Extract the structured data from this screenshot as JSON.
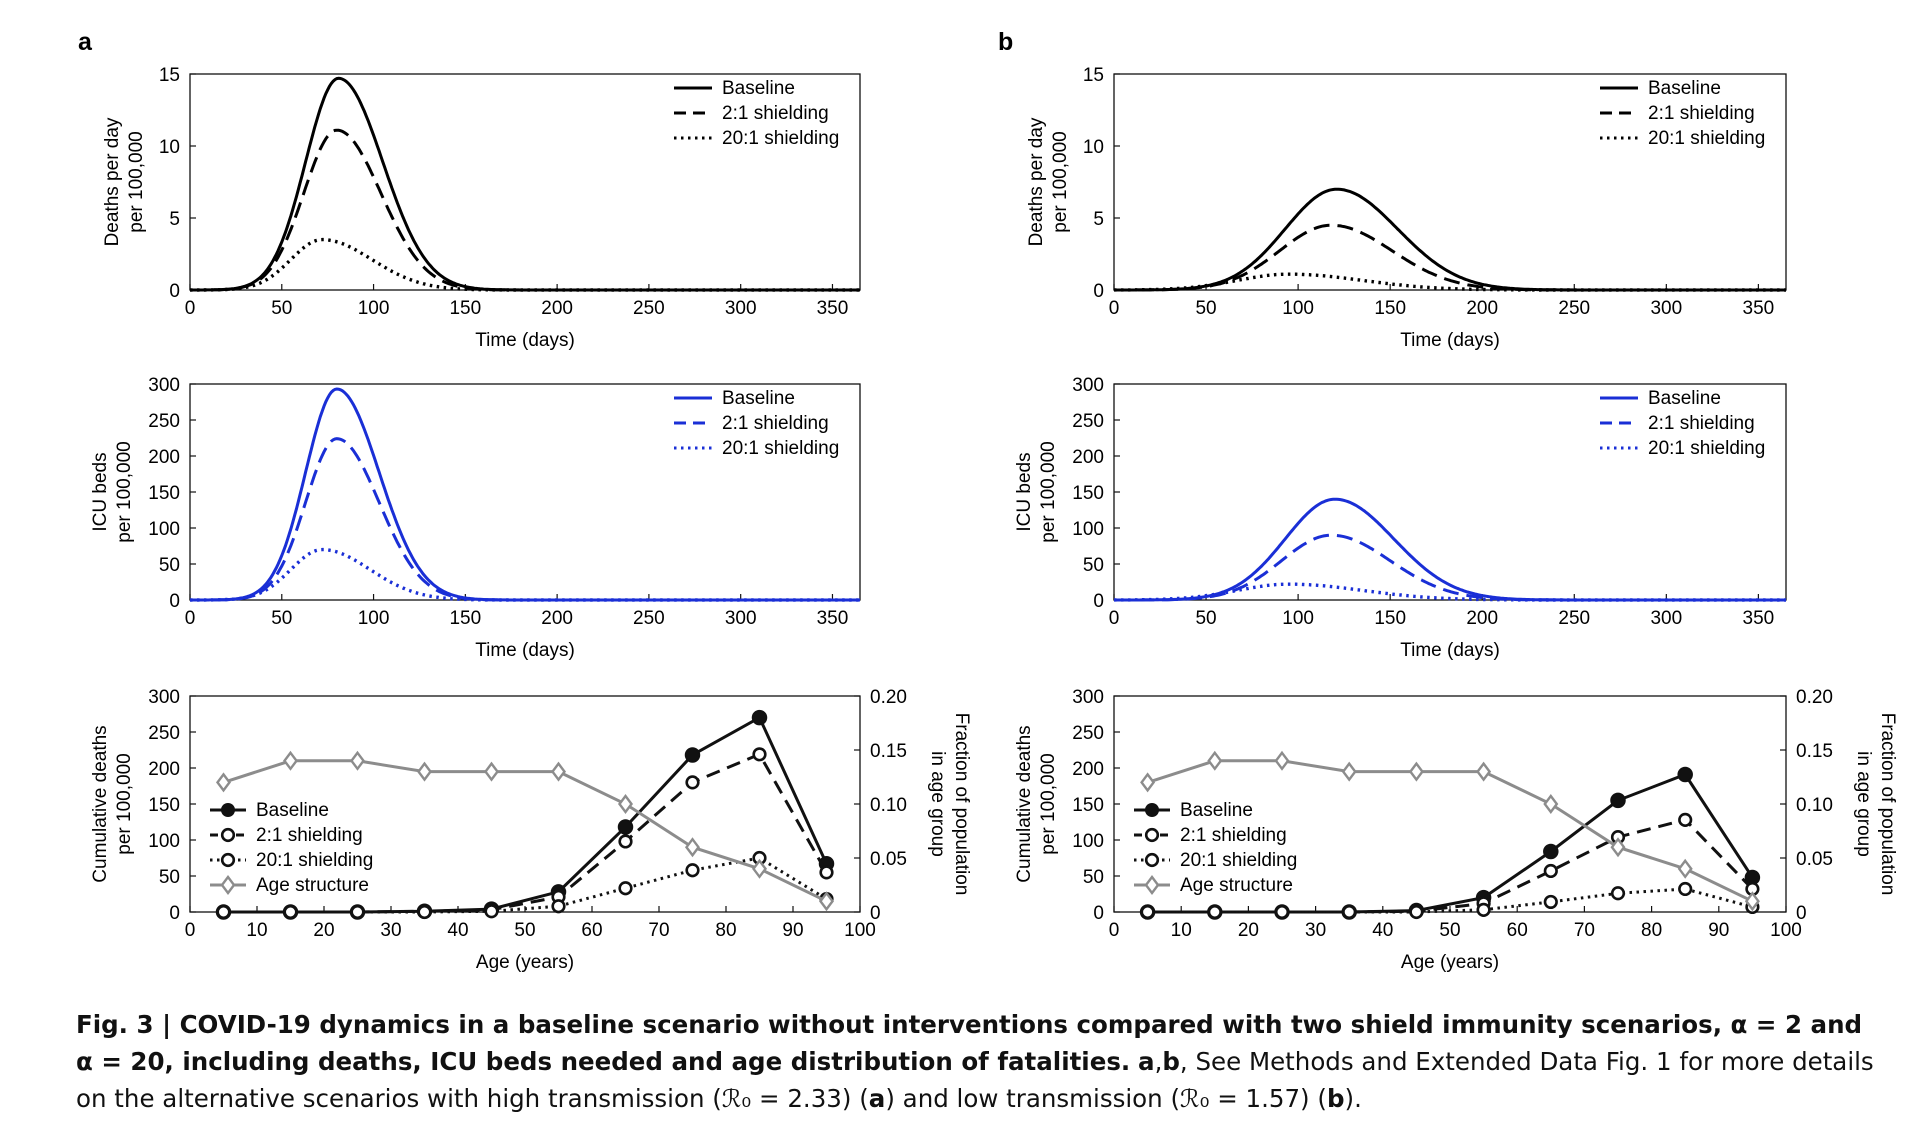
{
  "panel_labels": [
    "a",
    "b"
  ],
  "legend": {
    "line_entries": [
      "Baseline",
      "2:1 shielding",
      "20:1 shielding"
    ],
    "age_entries": [
      "Baseline",
      "2:1 shielding",
      "20:1 shielding",
      "Age structure"
    ]
  },
  "colors": {
    "deaths": "#000000",
    "icu": "#1a2fd6",
    "age_structure": "#8c8c8c"
  },
  "caption": {
    "fig_label": "Fig. 3 | ",
    "bold_text": "COVID-19 dynamics in a baseline scenario without interventions compared with two shield immunity scenarios, α = 2 and α = 20, including deaths, ICU beds needed and age distribution of fatalities.",
    "ab_label": "a",
    "ab_sep": ",",
    "b_label": "b",
    "text_1": ", See Methods and Extended Data Fig. 1 for more details on the alternative scenarios with high transmission (ℛ₀ = 2.33) (",
    "text_2": ") and low transmission (ℛ₀ = 1.57) (",
    "text_3": ")."
  },
  "chart_data": [
    {
      "panel": "a",
      "type": "line",
      "xlabel": "Time (days)",
      "ylabel": [
        "Deaths per day",
        "per 100,000"
      ],
      "xlim": [
        0,
        365
      ],
      "ylim": [
        0,
        15
      ],
      "xticks": [
        0,
        50,
        100,
        150,
        200,
        250,
        300,
        350
      ],
      "yticks": [
        0,
        5,
        10,
        15
      ],
      "legend_position": "top-right",
      "series": [
        {
          "name": "Baseline",
          "dash": "solid",
          "peak_day": 81,
          "peak": 14.7,
          "sigma_left": 18,
          "sigma_right": 24
        },
        {
          "name": "2:1 shielding",
          "dash": "dashed",
          "peak_day": 80,
          "peak": 11.1,
          "sigma_left": 18,
          "sigma_right": 24
        },
        {
          "name": "20:1 shielding",
          "dash": "dotted",
          "peak_day": 72,
          "peak": 3.5,
          "sigma_left": 17,
          "sigma_right": 27
        }
      ]
    },
    {
      "panel": "b",
      "type": "line",
      "xlabel": "Time (days)",
      "ylabel": [
        "Deaths per day",
        "per 100,000"
      ],
      "xlim": [
        0,
        365
      ],
      "ylim": [
        0,
        15
      ],
      "xticks": [
        0,
        50,
        100,
        150,
        200,
        250,
        300,
        350
      ],
      "yticks": [
        0,
        5,
        10,
        15
      ],
      "legend_position": "top-right",
      "series": [
        {
          "name": "Baseline",
          "dash": "solid",
          "peak_day": 121,
          "peak": 7.0,
          "sigma_left": 28,
          "sigma_right": 33
        },
        {
          "name": "2:1 shielding",
          "dash": "dashed",
          "peak_day": 118,
          "peak": 4.5,
          "sigma_left": 28,
          "sigma_right": 33
        },
        {
          "name": "20:1 shielding",
          "dash": "dotted",
          "peak_day": 95,
          "peak": 1.1,
          "sigma_left": 28,
          "sigma_right": 40
        }
      ]
    },
    {
      "panel": "a",
      "type": "line",
      "xlabel": "Time (days)",
      "ylabel": [
        "ICU beds",
        "per 100,000"
      ],
      "xlim": [
        0,
        365
      ],
      "ylim": [
        0,
        300
      ],
      "xticks": [
        0,
        50,
        100,
        150,
        200,
        250,
        300,
        350
      ],
      "yticks": [
        0,
        50,
        100,
        150,
        200,
        250,
        300
      ],
      "legend_position": "top-right",
      "series": [
        {
          "name": "Baseline",
          "dash": "solid",
          "peak_day": 80,
          "peak": 293,
          "sigma_left": 17,
          "sigma_right": 23
        },
        {
          "name": "2:1 shielding",
          "dash": "dashed",
          "peak_day": 80,
          "peak": 224,
          "sigma_left": 17,
          "sigma_right": 23
        },
        {
          "name": "20:1 shielding",
          "dash": "dotted",
          "peak_day": 72,
          "peak": 70,
          "sigma_left": 17,
          "sigma_right": 26
        }
      ]
    },
    {
      "panel": "b",
      "type": "line",
      "xlabel": "Time (days)",
      "ylabel": [
        "ICU beds",
        "per 100,000"
      ],
      "xlim": [
        0,
        365
      ],
      "ylim": [
        0,
        300
      ],
      "xticks": [
        0,
        50,
        100,
        150,
        200,
        250,
        300,
        350
      ],
      "yticks": [
        0,
        50,
        100,
        150,
        200,
        250,
        300
      ],
      "legend_position": "top-right",
      "series": [
        {
          "name": "Baseline",
          "dash": "solid",
          "peak_day": 120,
          "peak": 140,
          "sigma_left": 27,
          "sigma_right": 32
        },
        {
          "name": "2:1 shielding",
          "dash": "dashed",
          "peak_day": 118,
          "peak": 90,
          "sigma_left": 27,
          "sigma_right": 32
        },
        {
          "name": "20:1 shielding",
          "dash": "dotted",
          "peak_day": 95,
          "peak": 22,
          "sigma_left": 28,
          "sigma_right": 40
        }
      ]
    },
    {
      "panel": "a",
      "type": "line",
      "xlabel": "Age (years)",
      "ylabel": [
        "Cumulative deaths",
        "per 100,000"
      ],
      "y2label": [
        "Fraction of population",
        "in age group"
      ],
      "xlim": [
        0,
        100
      ],
      "ylim": [
        0,
        300
      ],
      "y2lim": [
        0,
        0.2
      ],
      "xticks": [
        0,
        10,
        20,
        30,
        40,
        50,
        60,
        70,
        80,
        90,
        100
      ],
      "yticks": [
        0,
        50,
        100,
        150,
        200,
        250,
        300
      ],
      "y2ticks": [
        "0",
        "0.05",
        "0.10",
        "0.15",
        "0.20"
      ],
      "legend_position": "left",
      "x": [
        5,
        15,
        25,
        35,
        45,
        55,
        65,
        75,
        85,
        95
      ],
      "series": [
        {
          "name": "Baseline",
          "dash": "solid",
          "marker": "filled-circle",
          "axis": "left",
          "values": [
            0,
            0,
            0,
            1,
            4,
            28,
            118,
            218,
            270,
            67
          ]
        },
        {
          "name": "2:1 shielding",
          "dash": "dashed",
          "marker": "open-circle",
          "axis": "left",
          "values": [
            0,
            0,
            0,
            1,
            3,
            21,
            98,
            180,
            219,
            55
          ]
        },
        {
          "name": "20:1 shielding",
          "dash": "dotted",
          "marker": "open-circle",
          "axis": "left",
          "values": [
            0,
            0,
            0,
            0,
            1,
            8,
            33,
            58,
            75,
            18
          ]
        },
        {
          "name": "Age structure",
          "dash": "solid",
          "marker": "diamond",
          "axis": "right",
          "values": [
            0.12,
            0.14,
            0.14,
            0.13,
            0.13,
            0.13,
            0.1,
            0.06,
            0.04,
            0.01
          ]
        }
      ]
    },
    {
      "panel": "b",
      "type": "line",
      "xlabel": "Age (years)",
      "ylabel": [
        "Cumulative deaths",
        "per 100,000"
      ],
      "y2label": [
        "Fraction of population",
        "in age group"
      ],
      "xlim": [
        0,
        100
      ],
      "ylim": [
        0,
        300
      ],
      "y2lim": [
        0,
        0.2
      ],
      "xticks": [
        0,
        10,
        20,
        30,
        40,
        50,
        60,
        70,
        80,
        90,
        100
      ],
      "yticks": [
        0,
        50,
        100,
        150,
        200,
        250,
        300
      ],
      "y2ticks": [
        "0",
        "0.05",
        "0.10",
        "0.15",
        "0.20"
      ],
      "legend_position": "left",
      "x": [
        5,
        15,
        25,
        35,
        45,
        55,
        65,
        75,
        85,
        95
      ],
      "series": [
        {
          "name": "Baseline",
          "dash": "solid",
          "marker": "filled-circle",
          "axis": "left",
          "values": [
            0,
            0,
            0,
            0,
            2,
            20,
            84,
            155,
            191,
            48
          ]
        },
        {
          "name": "2:1 shielding",
          "dash": "dashed",
          "marker": "open-circle",
          "axis": "left",
          "values": [
            0,
            0,
            0,
            0,
            1,
            12,
            57,
            104,
            128,
            32
          ]
        },
        {
          "name": "20:1 shielding",
          "dash": "dotted",
          "marker": "open-circle",
          "axis": "left",
          "values": [
            0,
            0,
            0,
            0,
            0,
            3,
            14,
            26,
            32,
            7
          ]
        },
        {
          "name": "Age structure",
          "dash": "solid",
          "marker": "diamond",
          "axis": "right",
          "values": [
            0.12,
            0.14,
            0.14,
            0.13,
            0.13,
            0.13,
            0.1,
            0.06,
            0.04,
            0.01
          ]
        }
      ]
    }
  ]
}
